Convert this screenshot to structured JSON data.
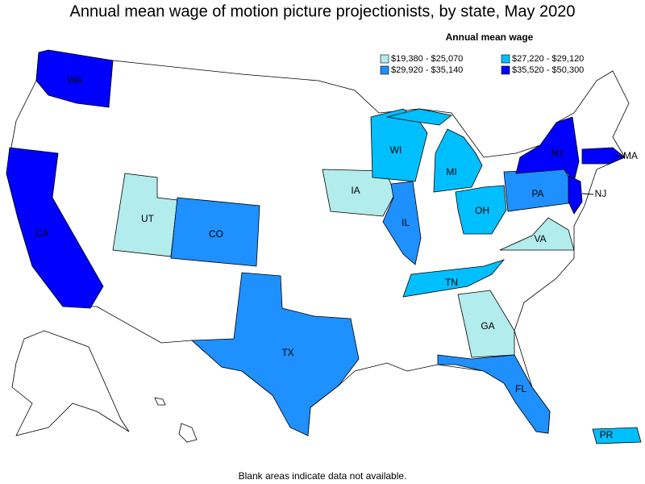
{
  "title": "Annual mean wage of motion picture projectionists, by state, May 2020",
  "legend": {
    "title": "Annual mean wage",
    "items": [
      {
        "label": "$19,380 - $25,070",
        "color": "#b3ecec"
      },
      {
        "label": "$27,220 - $29,120",
        "color": "#00bfff"
      },
      {
        "label": "$29,920 - $35,140",
        "color": "#1e90ff"
      },
      {
        "label": "$35,520 - $50,300",
        "color": "#0000ff"
      }
    ]
  },
  "states": [
    {
      "label": "WA",
      "bin": 3
    },
    {
      "label": "CA",
      "bin": 3
    },
    {
      "label": "UT",
      "bin": 0
    },
    {
      "label": "CO",
      "bin": 2
    },
    {
      "label": "TX",
      "bin": 2
    },
    {
      "label": "IA",
      "bin": 0
    },
    {
      "label": "IL",
      "bin": 2
    },
    {
      "label": "WI",
      "bin": 1
    },
    {
      "label": "MI",
      "bin": 1
    },
    {
      "label": "OH",
      "bin": 1
    },
    {
      "label": "PA",
      "bin": 2
    },
    {
      "label": "NY",
      "bin": 3
    },
    {
      "label": "MA",
      "bin": 3
    },
    {
      "label": "NJ",
      "bin": 3
    },
    {
      "label": "VA",
      "bin": 0
    },
    {
      "label": "TN",
      "bin": 1
    },
    {
      "label": "GA",
      "bin": 0
    },
    {
      "label": "FL",
      "bin": 2
    },
    {
      "label": "PR",
      "bin": 1
    }
  ],
  "note": "Blank areas indicate data not available."
}
